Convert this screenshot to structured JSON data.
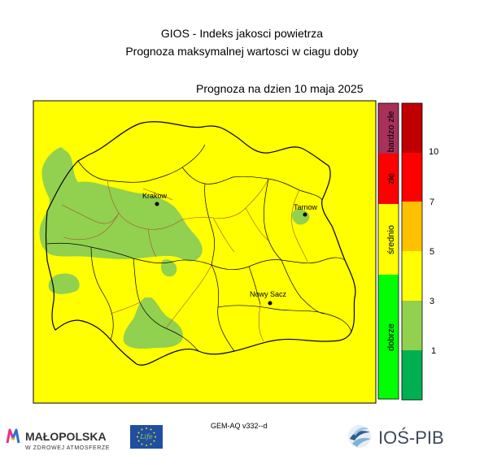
{
  "header": {
    "title_line1": "GIOS - Indeks jakosci powietrza",
    "title_line2": "Prognoza maksymalnej wartosci w ciagu doby",
    "forecast_date": "Prognoza na dzien  10 maja 2025"
  },
  "map": {
    "cities": [
      {
        "name": "Krakow"
      },
      {
        "name": "Tarnow"
      },
      {
        "name": "Nowy Sacz"
      }
    ],
    "colors": {
      "background": "#ffff00",
      "good_area": "#92d050",
      "border": "#000000",
      "district": "#a0522d"
    }
  },
  "category_bar": {
    "items": [
      {
        "label": "bardzo złe",
        "color": "#a8305a"
      },
      {
        "label": "złe",
        "color": "#ff0000"
      },
      {
        "label": "średnio",
        "color": "#ffff00"
      },
      {
        "label": "dobrze",
        "color": "#00ff00"
      }
    ]
  },
  "index_scale": {
    "colors": [
      "#00b050",
      "#92d050",
      "#ffff00",
      "#ffc000",
      "#ff0000",
      "#c00000"
    ],
    "ticks": [
      "1",
      "3",
      "5",
      "7",
      "10"
    ]
  },
  "footer": {
    "model": "GEM-AQ v332--d",
    "malopolska_name": "MAŁOPOLSKA",
    "malopolska_tagline": "W ZDROWEJ ATMOSFERZE",
    "eu_label": "Life",
    "ios_name": "IOŚ-PIB"
  }
}
